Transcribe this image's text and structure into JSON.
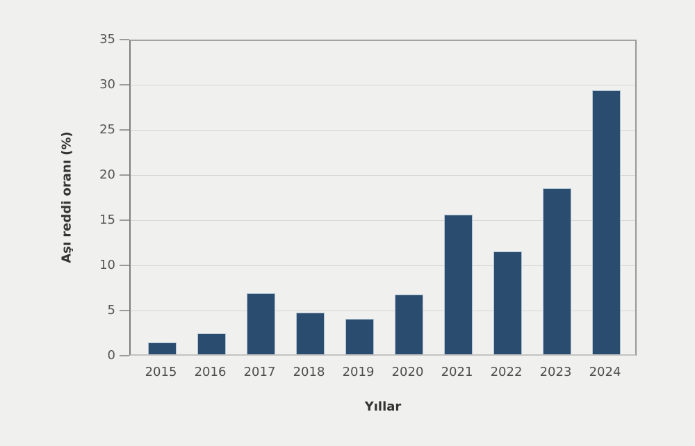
{
  "chart_data": {
    "type": "bar",
    "title": "",
    "xlabel": "Yıllar",
    "ylabel": "Aşı reddi oranı (%)",
    "categories": [
      "2015",
      "2016",
      "2017",
      "2018",
      "2019",
      "2020",
      "2021",
      "2022",
      "2023",
      "2024"
    ],
    "values": [
      1.3,
      2.3,
      6.8,
      4.6,
      3.9,
      6.6,
      15.5,
      11.4,
      18.4,
      29.2
    ],
    "ylim": [
      0,
      35
    ],
    "yticks": [
      0,
      5,
      10,
      15,
      20,
      25,
      30,
      35
    ],
    "grid": "horizontal",
    "legend": "none",
    "colors": {
      "bar_fill": "#2a4c6e",
      "bar_edge": "#b0c4d4",
      "background": "#f0f0ef",
      "gridline": "#d6d6d6",
      "tick_text": "#565656",
      "label_text": "#333333"
    }
  }
}
